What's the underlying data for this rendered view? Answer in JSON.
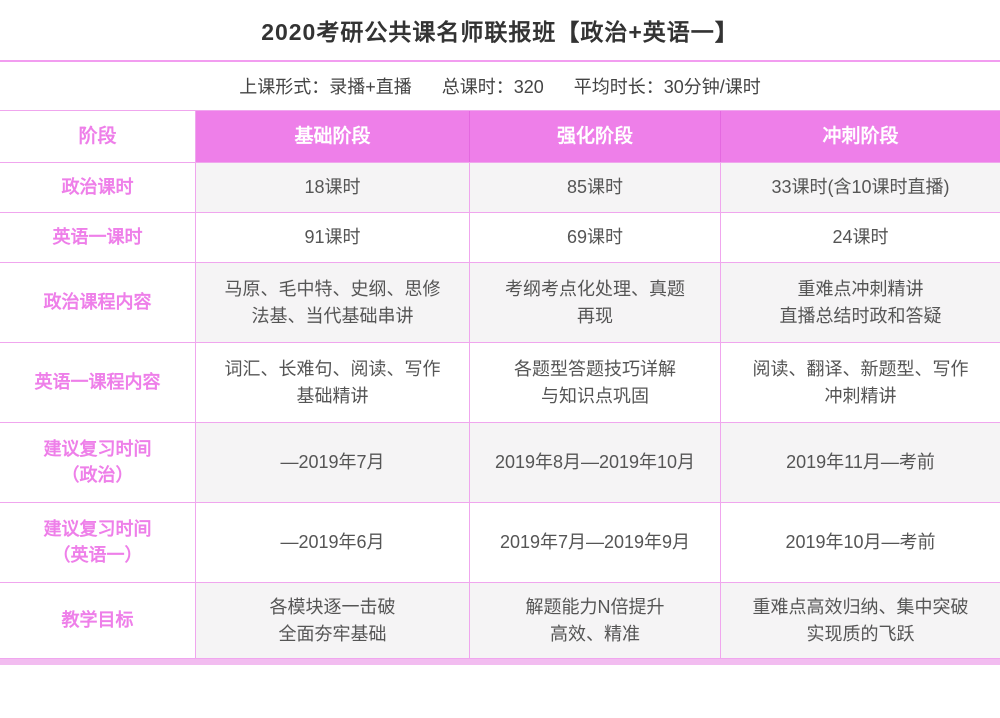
{
  "page": {
    "title": "2020考研公共课名师联报班【政治+英语一】",
    "info": {
      "class_format": "上课形式：录播+直播",
      "total_hours": "总课时：320",
      "avg_duration": "平均时长：30分钟/课时"
    }
  },
  "colors": {
    "accent_magenta": "#ee7fe9",
    "row_gray_bg": "#f5f4f5",
    "border_pink": "#f0a6ee",
    "bottom_bar_pink": "#f2bcf0",
    "title_text": "#333333",
    "cell_text": "#555555"
  },
  "table": {
    "header": {
      "stage_label": "阶段",
      "columns": [
        "基础阶段",
        "强化阶段",
        "冲刺阶段"
      ]
    },
    "rows": [
      {
        "label": "政治课时",
        "cells": [
          "18课时",
          "85课时",
          "33课时(含10课时直播)"
        ]
      },
      {
        "label": "英语一课时",
        "cells": [
          "91课时",
          "69课时",
          "24课时"
        ]
      },
      {
        "label": "政治课程内容",
        "cells": [
          "马原、毛中特、史纲、思修\n法基、当代基础串讲",
          "考纲考点化处理、真题\n再现",
          "重难点冲刺精讲\n直播总结时政和答疑"
        ]
      },
      {
        "label": "英语一课程内容",
        "cells": [
          "词汇、长难句、阅读、写作\n基础精讲",
          "各题型答题技巧详解\n与知识点巩固",
          "阅读、翻译、新题型、写作\n冲刺精讲"
        ]
      },
      {
        "label": "建议复习时间\n（政治）",
        "cells": [
          "—2019年7月",
          "2019年8月—2019年10月",
          "2019年11月—考前"
        ]
      },
      {
        "label": "建议复习时间\n（英语一）",
        "cells": [
          "—2019年6月",
          "2019年7月—2019年9月",
          "2019年10月—考前"
        ]
      },
      {
        "label": "教学目标",
        "cells": [
          "各模块逐一击破\n全面夯牢基础",
          "解题能力N倍提升\n高效、精准",
          "重难点高效归纳、集中突破\n实现质的飞跃"
        ]
      }
    ]
  }
}
